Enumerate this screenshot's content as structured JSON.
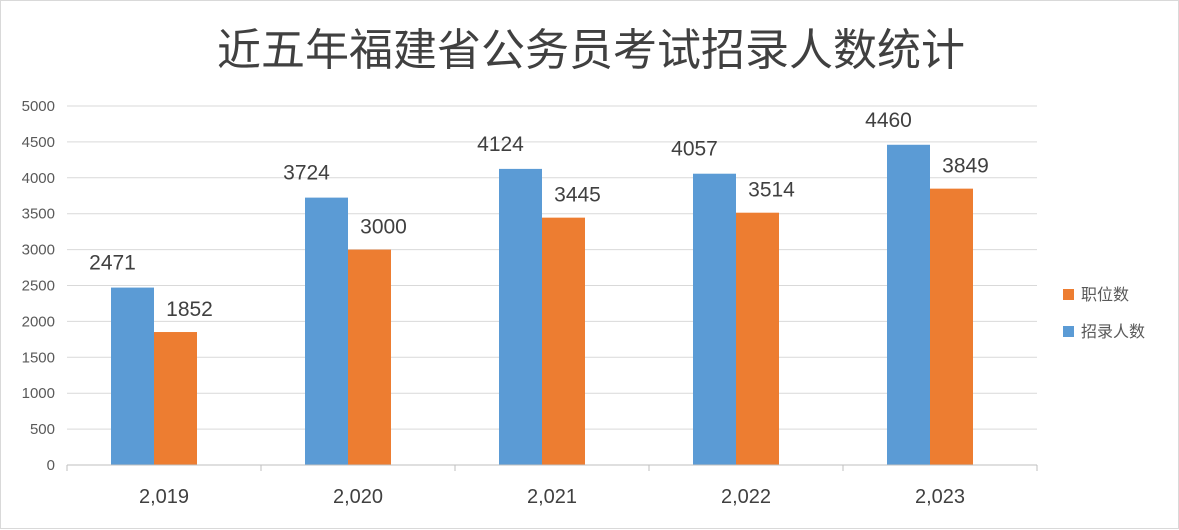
{
  "chart_data": {
    "type": "bar",
    "title": "近五年福建省公务员考试招录人数统计",
    "categories": [
      "2,019",
      "2,020",
      "2,021",
      "2,022",
      "2,023"
    ],
    "series": [
      {
        "name": "招录人数",
        "color": "#5b9bd5",
        "values": [
          2471,
          3724,
          4124,
          4057,
          4460
        ]
      },
      {
        "name": "职位数",
        "color": "#ed7d31",
        "values": [
          1852,
          3000,
          3445,
          3514,
          3849
        ]
      }
    ],
    "ylim": [
      0,
      5000
    ],
    "yticks": [
      0,
      500,
      1000,
      1500,
      2000,
      2500,
      3000,
      3500,
      4000,
      4500,
      5000
    ],
    "grid": true,
    "legend_position": "right",
    "legend_order": [
      "职位数",
      "招录人数"
    ]
  }
}
